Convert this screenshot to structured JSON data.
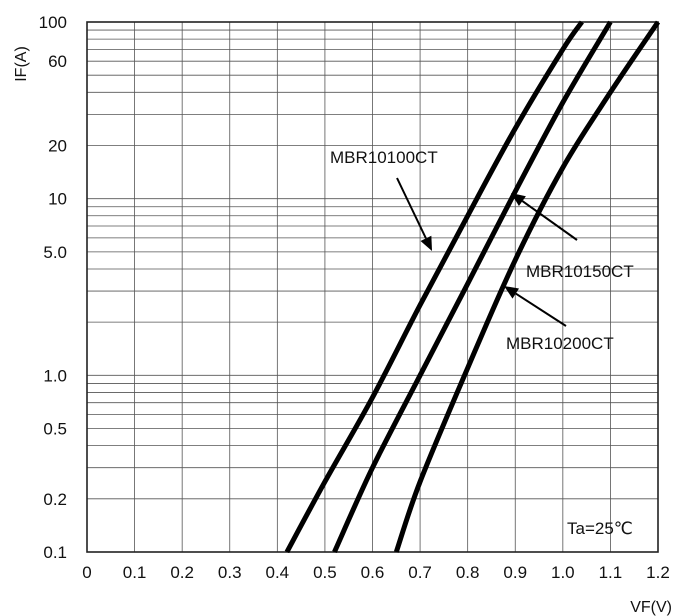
{
  "chart_data": {
    "type": "line",
    "title": "",
    "xlabel": "VF(V)",
    "ylabel": "IF(A)",
    "xlim": [
      0,
      1.2
    ],
    "ylim": [
      0.1,
      100
    ],
    "yscale": "log",
    "grid": true,
    "x_ticks": [
      0,
      0.1,
      0.2,
      0.3,
      0.4,
      0.5,
      0.6,
      0.7,
      0.8,
      0.9,
      1.0,
      1.1,
      1.2
    ],
    "x_tick_labels": [
      "0",
      "0.1",
      "0.2",
      "0.3",
      "0.4",
      "0.5",
      "0.6",
      "0.7",
      "0.8",
      "0.9",
      "1.0",
      "1.1",
      "1.2"
    ],
    "y_ticks": [
      0.1,
      0.2,
      0.5,
      1.0,
      5.0,
      10,
      20,
      60,
      100
    ],
    "y_tick_labels": [
      "0.1",
      "0.2",
      "0.5",
      "1.0",
      "5.0",
      "10",
      "20",
      "60",
      "100"
    ],
    "series": [
      {
        "name": "MBR10100CT",
        "x": [
          0.42,
          0.5,
          0.6,
          0.7,
          0.8,
          0.9,
          1.0,
          1.04
        ],
        "y": [
          0.1,
          0.25,
          0.75,
          2.5,
          8,
          25,
          70,
          100
        ]
      },
      {
        "name": "MBR10150CT",
        "x": [
          0.52,
          0.6,
          0.7,
          0.8,
          0.9,
          1.0,
          1.1
        ],
        "y": [
          0.1,
          0.3,
          1.0,
          3.3,
          11,
          35,
          100
        ]
      },
      {
        "name": "MBR10200CT",
        "x": [
          0.65,
          0.7,
          0.8,
          0.9,
          1.0,
          1.1,
          1.2
        ],
        "y": [
          0.1,
          0.25,
          1.1,
          4.5,
          15,
          40,
          100
        ]
      }
    ],
    "annotations": [
      {
        "text": "Ta=25℃"
      }
    ]
  }
}
